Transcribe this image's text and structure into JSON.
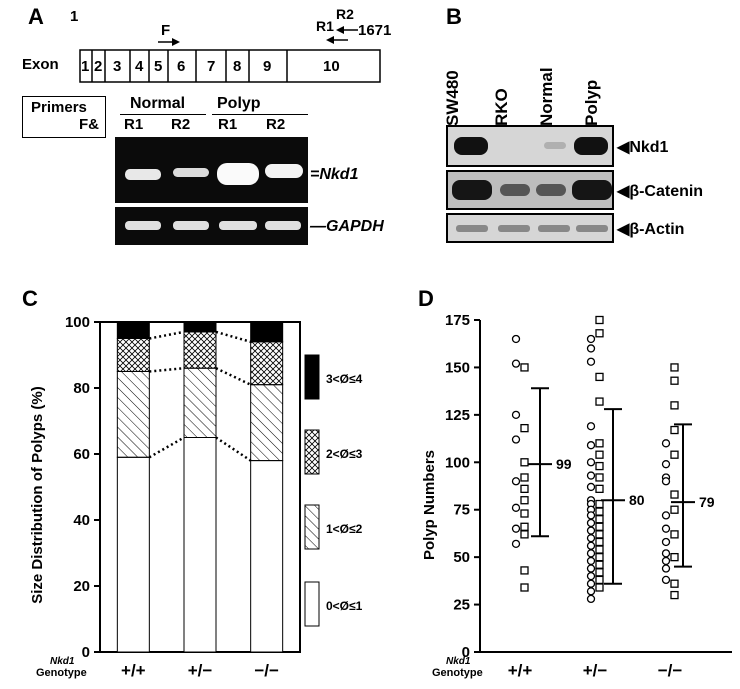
{
  "panel_a": {
    "letter": "A",
    "start": "1",
    "end": "1671",
    "exon_label": "Exon",
    "exons": [
      "1",
      "2",
      "3",
      "4",
      "5",
      "6",
      "7",
      "8",
      "9",
      "10"
    ],
    "primer_f": "F",
    "primer_r1": "R1",
    "primer_r2": "R2",
    "primers_header": "Primers",
    "primers_sub": "F&",
    "group_normal": "Normal",
    "group_polyp": "Polyp",
    "lanes": [
      "R1",
      "R2",
      "R1",
      "R2"
    ],
    "band_top": "Nkd1",
    "band_bottom": "GAPDH"
  },
  "panel_b": {
    "letter": "B",
    "lanes": [
      "SW480",
      "RKO",
      "Normal",
      "Polyp"
    ],
    "blots": [
      "Nkd1",
      "β-Catenin",
      "β-Actin"
    ]
  },
  "panel_c": {
    "letter": "C",
    "genotype_title": "Nkd1",
    "genotype_label": "Genotype",
    "legend": [
      "3<Ø≤4",
      "2<Ø≤3",
      "1<Ø≤2",
      "0<Ø≤1"
    ]
  },
  "panel_d": {
    "letter": "D",
    "genotype_title": "Nkd1",
    "genotype_label": "Genotype",
    "means": [
      "99",
      "80",
      "79"
    ]
  },
  "chart_data": [
    {
      "type": "bar",
      "stacked": true,
      "categories": [
        "+/+",
        "+/−",
        "−/−"
      ],
      "ylabel": "Size Distribution of Polyps (%)",
      "ylim": [
        0,
        100
      ],
      "yticks": [
        0,
        20,
        40,
        60,
        80,
        100
      ],
      "series": [
        {
          "name": "0<Ø≤1",
          "values": [
            59,
            65,
            58
          ]
        },
        {
          "name": "1<Ø≤2",
          "values": [
            26,
            21,
            23
          ]
        },
        {
          "name": "2<Ø≤3",
          "values": [
            10,
            11,
            13
          ]
        },
        {
          "name": "3<Ø≤4",
          "values": [
            5,
            3,
            6
          ]
        }
      ]
    },
    {
      "type": "scatter",
      "categories": [
        "+/+",
        "+/−",
        "−/−"
      ],
      "ylabel": "Polyp Numbers",
      "ylim": [
        0,
        175
      ],
      "yticks": [
        25,
        50,
        75,
        100,
        125,
        150,
        175
      ],
      "means": [
        99,
        80,
        79
      ],
      "error_ranges": [
        [
          61,
          139
        ],
        [
          36,
          128
        ],
        [
          45,
          120
        ]
      ],
      "series": [
        {
          "name": "",
          "marker": "circle",
          "values": [
            [
              165,
              152,
              125,
              112,
              90,
              76,
              65,
              57
            ],
            [
              165,
              160,
              153,
              119,
              109,
              100,
              93,
              87,
              80,
              78,
              75,
              72,
              68,
              64,
              60,
              56,
              52,
              48,
              44,
              40,
              36,
              32,
              28
            ],
            [
              110,
              99,
              92,
              90,
              72,
              65,
              58,
              52,
              48,
              44,
              38
            ]
          ]
        },
        {
          "name": "",
          "marker": "square",
          "values": [
            [
              150,
              118,
              100,
              92,
              86,
              80,
              73,
              66,
              62,
              43,
              34
            ],
            [
              175,
              168,
              145,
              132,
              110,
              104,
              98,
              92,
              86,
              78,
              74,
              70,
              66,
              62,
              58,
              54,
              50,
              46,
              42,
              38,
              34
            ],
            [
              150,
              143,
              130,
              117,
              104,
              83,
              75,
              62,
              50,
              36,
              30
            ]
          ]
        }
      ]
    }
  ]
}
